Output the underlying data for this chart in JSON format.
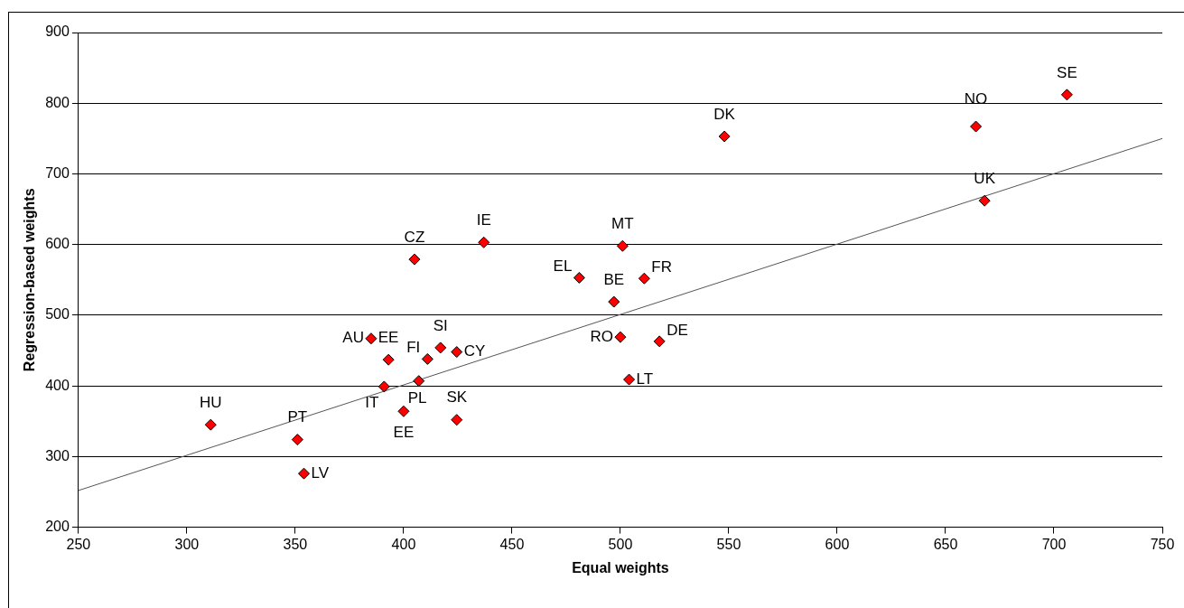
{
  "chart_data": {
    "type": "scatter",
    "xlabel": "Equal weights",
    "ylabel": "Regression-based weights",
    "xlim": [
      250,
      750
    ],
    "xticks": [
      250,
      300,
      350,
      400,
      450,
      500,
      550,
      600,
      650,
      700,
      750
    ],
    "ylim": [
      200,
      900
    ],
    "yticks": [
      200,
      300,
      400,
      500,
      600,
      700,
      800,
      900
    ],
    "grid": "y",
    "legend": false,
    "series": [
      {
        "marker": "diamond",
        "color": "#ff0000",
        "x": [
          311,
          351,
          354,
          385,
          393,
          391,
          400,
          407,
          411,
          417,
          424.5,
          424.5,
          405,
          437,
          481,
          501,
          497,
          511,
          500,
          518,
          504,
          548,
          664,
          668,
          706
        ],
        "values": [
          345,
          324,
          276,
          467,
          437,
          399,
          364,
          407,
          438,
          454,
          448,
          352,
          579,
          603,
          553,
          598,
          519,
          552,
          469,
          463,
          409,
          753,
          767,
          662,
          812
        ]
      },
      {
        "type": "line",
        "marker": "none",
        "color": "#555555",
        "x": [
          250,
          750
        ],
        "values": [
          252,
          750
        ]
      }
    ],
    "annotations": [
      {
        "text": "HU",
        "x": 311,
        "y": 345
      },
      {
        "text": "PT",
        "x": 351,
        "y": 324
      },
      {
        "text": "LV",
        "x": 354,
        "y": 276
      },
      {
        "text": "AU",
        "x": 385,
        "y": 467
      },
      {
        "text": "EE",
        "x": 393,
        "y": 437
      },
      {
        "text": "IT",
        "x": 391,
        "y": 399
      },
      {
        "text": "EE",
        "x": 400,
        "y": 364
      },
      {
        "text": "PL",
        "x": 407,
        "y": 407
      },
      {
        "text": "FI",
        "x": 411,
        "y": 438
      },
      {
        "text": "SI",
        "x": 417,
        "y": 454
      },
      {
        "text": "CY",
        "x": 424.5,
        "y": 448
      },
      {
        "text": "SK",
        "x": 424.5,
        "y": 352
      },
      {
        "text": "CZ",
        "x": 405,
        "y": 579
      },
      {
        "text": "IE",
        "x": 437,
        "y": 603
      },
      {
        "text": "EL",
        "x": 481,
        "y": 553
      },
      {
        "text": "MT",
        "x": 501,
        "y": 598
      },
      {
        "text": "BE",
        "x": 497,
        "y": 519
      },
      {
        "text": "FR",
        "x": 511,
        "y": 552
      },
      {
        "text": "RO",
        "x": 500,
        "y": 469
      },
      {
        "text": "DE",
        "x": 518,
        "y": 463
      },
      {
        "text": "LT",
        "x": 504,
        "y": 409
      },
      {
        "text": "DK",
        "x": 548,
        "y": 753
      },
      {
        "text": "NO",
        "x": 664,
        "y": 767
      },
      {
        "text": "UK",
        "x": 668,
        "y": 662
      },
      {
        "text": "SE",
        "x": 706,
        "y": 812
      }
    ]
  }
}
